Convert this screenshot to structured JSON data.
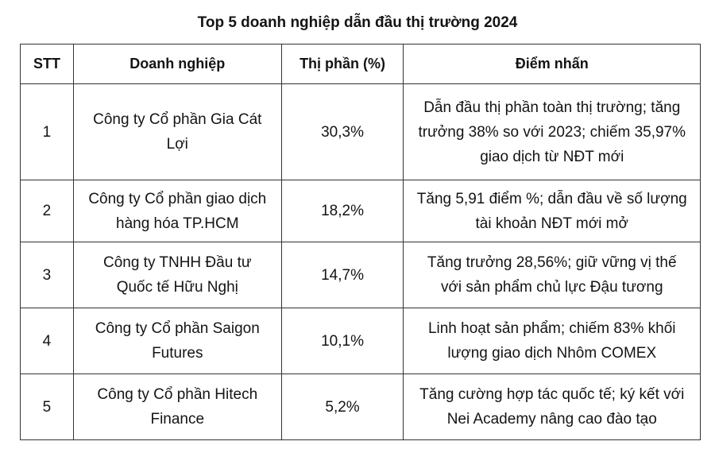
{
  "title": "Top 5 doanh nghiệp dẫn đầu thị trường 2024",
  "headers": [
    "STT",
    "Doanh nghiệp",
    "Thị phần (%)",
    "Điểm nhấn"
  ],
  "rows": [
    {
      "stt": "1",
      "company": "Công ty Cổ phần Gia Cát Lợi",
      "share": "30,3%",
      "highlight": "Dẫn đầu thị phần toàn thị trường; tăng trưởng 38% so với 2023; chiếm 35,97% giao dịch từ NĐT mới"
    },
    {
      "stt": "2",
      "company": "Công ty Cổ phần giao dịch hàng hóa TP.HCM",
      "share": "18,2%",
      "highlight": "Tăng 5,91 điểm %; dẫn đầu về số lượng tài khoản NĐT mới mở"
    },
    {
      "stt": "3",
      "company": "Công ty TNHH Đầu tư Quốc tế Hữu Nghị",
      "share": "14,7%",
      "highlight": "Tăng trưởng 28,56%; giữ vững vị thế với sản phẩm chủ lực Đậu tương"
    },
    {
      "stt": "4",
      "company": "Công ty Cổ phần Saigon Futures",
      "share": "10,1%",
      "highlight": "Linh hoạt sản phẩm; chiếm 83% khối lượng giao dịch Nhôm COMEX"
    },
    {
      "stt": "5",
      "company": "Công ty Cổ phần Hitech Finance",
      "share": "5,2%",
      "highlight": "Tăng cường hợp tác quốc tế; ký kết với Nei Academy nâng cao đào tạo"
    }
  ]
}
